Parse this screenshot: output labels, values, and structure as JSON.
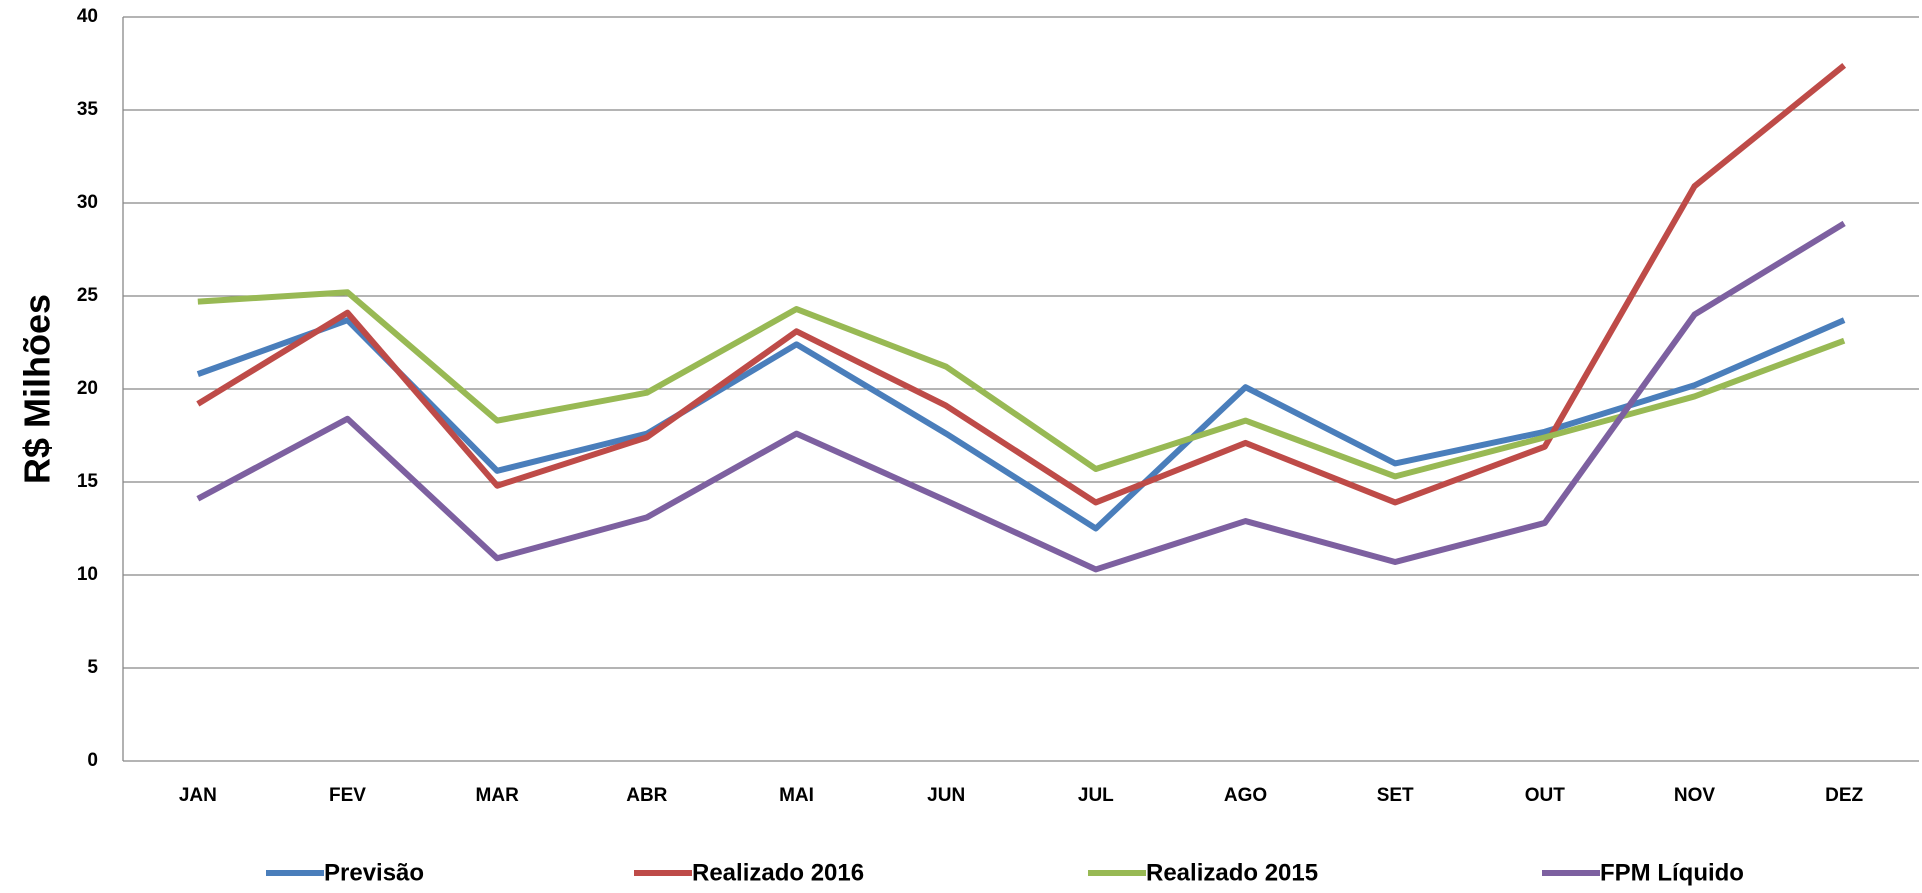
{
  "chart_data": {
    "type": "line",
    "y_label": "R$ Milhões",
    "categories": [
      "JAN",
      "FEV",
      "MAR",
      "ABR",
      "MAI",
      "JUN",
      "JUL",
      "AGO",
      "SET",
      "OUT",
      "NOV",
      "DEZ"
    ],
    "series": [
      {
        "name": "Previsão",
        "color": "#4a7ebb",
        "values": [
          20.8,
          23.7,
          15.6,
          17.6,
          22.4,
          17.6,
          12.5,
          20.1,
          16.0,
          17.7,
          20.2,
          23.7
        ]
      },
      {
        "name": "Realizado 2016",
        "color": "#be4b48",
        "values": [
          19.2,
          24.1,
          14.8,
          17.4,
          23.1,
          19.1,
          13.9,
          17.1,
          13.9,
          16.9,
          30.9,
          37.4
        ]
      },
      {
        "name": "Realizado 2015",
        "color": "#98b954",
        "values": [
          24.7,
          25.2,
          18.3,
          19.8,
          24.3,
          21.2,
          15.7,
          18.3,
          15.3,
          17.4,
          19.6,
          22.6
        ]
      },
      {
        "name": "FPM Líquido",
        "color": "#7d60a0",
        "values": [
          14.1,
          18.4,
          10.9,
          13.1,
          17.6,
          14.0,
          10.3,
          12.9,
          10.7,
          12.8,
          24.0,
          28.9
        ]
      }
    ],
    "ylim": [
      0,
      40
    ],
    "yticks": [
      0,
      5,
      10,
      15,
      20,
      25,
      30,
      35,
      40
    ],
    "grid": true,
    "legend": "bottom"
  }
}
